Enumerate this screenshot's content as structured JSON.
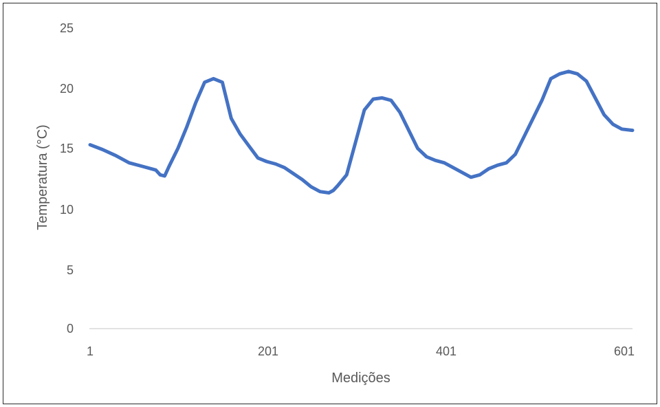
{
  "chart_data": {
    "type": "line",
    "xlabel": "Medições",
    "ylabel": "Temperatura (°C)",
    "xlim": [
      1,
      612
    ],
    "ylim": [
      0,
      25
    ],
    "x_ticks": [
      "1",
      "201",
      "401",
      "601"
    ],
    "y_ticks": [
      "0",
      "5",
      "10",
      "15",
      "20",
      "25"
    ],
    "grid": false,
    "legend": "none",
    "series_color": "#4472C4",
    "series": [
      {
        "x": [
          1,
          15,
          30,
          45,
          60,
          75,
          80,
          85,
          90,
          100,
          110,
          120,
          130,
          140,
          150,
          160,
          170,
          180,
          190,
          200,
          210,
          220,
          230,
          240,
          250,
          260,
          270,
          275,
          280,
          290,
          300,
          310,
          320,
          330,
          340,
          350,
          360,
          370,
          380,
          390,
          400,
          410,
          420,
          430,
          440,
          450,
          460,
          470,
          480,
          490,
          500,
          510,
          520,
          530,
          540,
          550,
          560,
          570,
          580,
          590,
          600,
          612
        ],
        "y": [
          15.3,
          14.9,
          14.4,
          13.8,
          13.5,
          13.2,
          12.8,
          12.7,
          13.5,
          15.0,
          16.8,
          18.8,
          20.5,
          20.8,
          20.5,
          17.5,
          16.2,
          15.2,
          14.2,
          13.9,
          13.7,
          13.4,
          12.9,
          12.4,
          11.8,
          11.4,
          11.3,
          11.5,
          11.9,
          12.8,
          15.5,
          18.2,
          19.1,
          19.2,
          19.0,
          18.0,
          16.5,
          15.0,
          14.3,
          14.0,
          13.8,
          13.4,
          13.0,
          12.6,
          12.8,
          13.3,
          13.6,
          13.8,
          14.5,
          16.0,
          17.5,
          19.0,
          20.8,
          21.2,
          21.4,
          21.2,
          20.6,
          19.2,
          17.8,
          17.0,
          16.6,
          16.5
        ]
      }
    ]
  }
}
